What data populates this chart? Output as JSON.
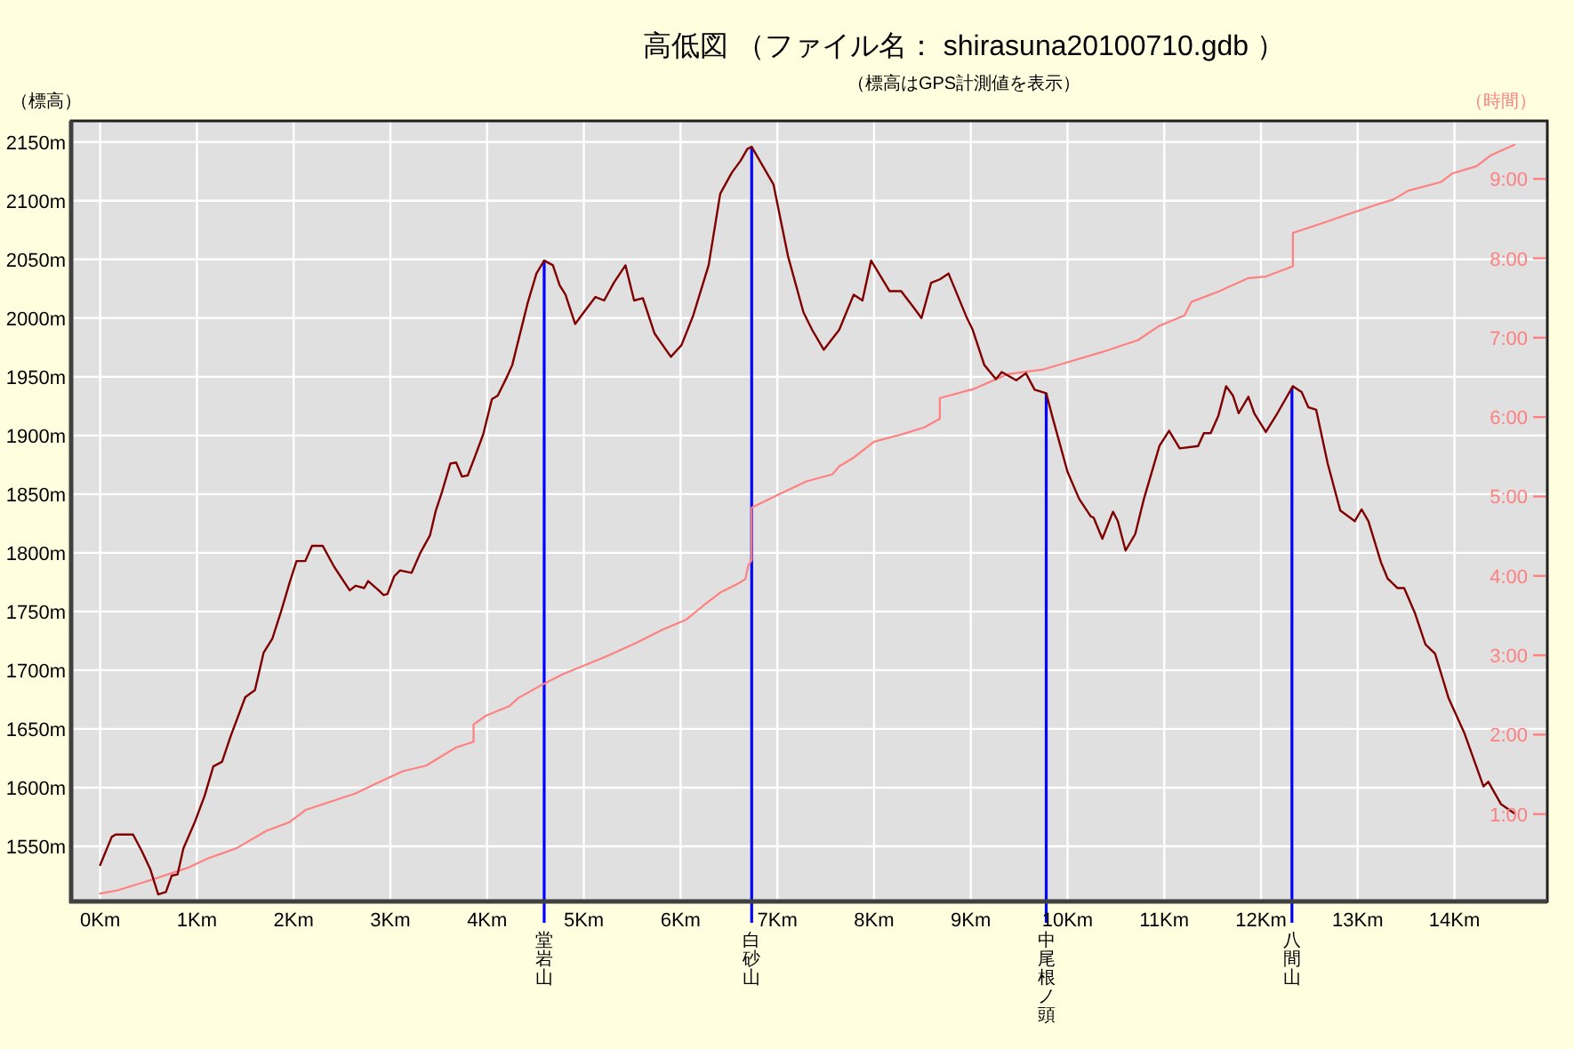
{
  "chart_data": {
    "type": "line",
    "title": "高低図 （ファイル名： shirasuna20100710.gdb ）",
    "subtitle": "（標高はGPS計測値を表示）",
    "ylabel": "（標高）",
    "y2label": "（時間）",
    "xlim": [
      -0.3,
      14.96
    ],
    "xticks": [
      {
        "value": 0,
        "label": "0Km"
      },
      {
        "value": 1,
        "label": "1Km"
      },
      {
        "value": 2,
        "label": "2Km"
      },
      {
        "value": 3,
        "label": "3Km"
      },
      {
        "value": 4,
        "label": "4Km"
      },
      {
        "value": 5,
        "label": "5Km"
      },
      {
        "value": 6,
        "label": "6Km"
      },
      {
        "value": 7,
        "label": "7Km"
      },
      {
        "value": 8,
        "label": "8Km"
      },
      {
        "value": 9,
        "label": "9Km"
      },
      {
        "value": 10,
        "label": "10Km"
      },
      {
        "value": 11,
        "label": "11Km"
      },
      {
        "value": 12,
        "label": "12Km"
      },
      {
        "value": 13,
        "label": "13Km"
      },
      {
        "value": 14,
        "label": "14Km"
      }
    ],
    "ylim": [
      1503,
      2168
    ],
    "yticks": [
      {
        "value": 1550,
        "label": "1550m"
      },
      {
        "value": 1600,
        "label": "1600m"
      },
      {
        "value": 1650,
        "label": "1650m"
      },
      {
        "value": 1700,
        "label": "1700m"
      },
      {
        "value": 1750,
        "label": "1750m"
      },
      {
        "value": 1800,
        "label": "1800m"
      },
      {
        "value": 1850,
        "label": "1850m"
      },
      {
        "value": 1900,
        "label": "1900m"
      },
      {
        "value": 1950,
        "label": "1950m"
      },
      {
        "value": 2000,
        "label": "2000m"
      },
      {
        "value": 2050,
        "label": "2050m"
      },
      {
        "value": 2100,
        "label": "2100m"
      },
      {
        "value": 2150,
        "label": "2150m"
      }
    ],
    "y2lim": [
      -0.1,
      9.73
    ],
    "y2ticks": [
      {
        "value": 1,
        "label": "1:00"
      },
      {
        "value": 2,
        "label": "2:00"
      },
      {
        "value": 3,
        "label": "3:00"
      },
      {
        "value": 4,
        "label": "4:00"
      },
      {
        "value": 5,
        "label": "5:00"
      },
      {
        "value": 6,
        "label": "6:00"
      },
      {
        "value": 7,
        "label": "7:00"
      },
      {
        "value": 8,
        "label": "8:00"
      },
      {
        "value": 9,
        "label": "9:00"
      }
    ],
    "grid": true,
    "series": [
      {
        "color": "#800000",
        "x": [
          0.0,
          0.12,
          0.16,
          0.34,
          0.43,
          0.52,
          0.6,
          0.68,
          0.74,
          0.8,
          0.86,
          0.98,
          1.08,
          1.17,
          1.26,
          1.35,
          1.5,
          1.6,
          1.69,
          1.78,
          1.87,
          1.96,
          2.03,
          2.12,
          2.19,
          2.3,
          2.42,
          2.58,
          2.64,
          2.73,
          2.77,
          2.88,
          2.93,
          2.97,
          3.04,
          3.1,
          3.22,
          3.31,
          3.41,
          3.47,
          3.53,
          3.62,
          3.68,
          3.74,
          3.8,
          3.87,
          3.96,
          4.05,
          4.11,
          4.2,
          4.26,
          4.42,
          4.51,
          4.59,
          4.68,
          4.75,
          4.81,
          4.91,
          5.0,
          5.12,
          5.21,
          5.31,
          5.43,
          5.52,
          5.61,
          5.73,
          5.9,
          6.01,
          6.13,
          6.29,
          6.41,
          6.53,
          6.62,
          6.69,
          6.735,
          6.84,
          6.96,
          7.11,
          7.27,
          7.36,
          7.48,
          7.64,
          7.79,
          7.88,
          7.97,
          8.16,
          8.28,
          8.4,
          8.49,
          8.59,
          8.68,
          8.77,
          8.95,
          9.02,
          9.14,
          9.26,
          9.32,
          9.47,
          9.57,
          9.66,
          9.78,
          9.84,
          10.0,
          10.12,
          10.24,
          10.27,
          10.36,
          10.47,
          10.52,
          10.6,
          10.7,
          10.79,
          10.95,
          11.05,
          11.16,
          11.35,
          11.41,
          11.48,
          11.56,
          11.64,
          11.71,
          11.77,
          11.87,
          11.93,
          12.05,
          12.17,
          12.33,
          12.42,
          12.49,
          12.57,
          12.69,
          12.82,
          12.97,
          13.04,
          13.11,
          13.24,
          13.31,
          13.41,
          13.48,
          13.59,
          13.7,
          13.8,
          13.94,
          14.1,
          14.3,
          14.35,
          14.48,
          14.62
        ],
        "values": [
          1534,
          1558,
          1560,
          1560,
          1546,
          1530,
          1509,
          1511,
          1525,
          1526,
          1548,
          1571,
          1593,
          1618,
          1622,
          1644,
          1677,
          1683,
          1715,
          1727,
          1750,
          1775,
          1793,
          1793,
          1806,
          1806,
          1788,
          1768,
          1772,
          1770,
          1776,
          1768,
          1764,
          1765,
          1780,
          1785,
          1783,
          1800,
          1815,
          1836,
          1851,
          1876,
          1877,
          1865,
          1866,
          1881,
          1901,
          1931,
          1934,
          1949,
          1960,
          2013,
          2038,
          2049,
          2045,
          2028,
          2020,
          1995,
          2005,
          2018,
          2015,
          2030,
          2045,
          2015,
          2017,
          1987,
          1967,
          1977,
          2002,
          2045,
          2106,
          2124,
          2134,
          2144,
          2146,
          2131,
          2114,
          2053,
          2005,
          1990,
          1973,
          1990,
          2020,
          2015,
          2049,
          2023,
          2023,
          2010,
          2000,
          2030,
          2033,
          2038,
          2002,
          1990,
          1960,
          1948,
          1954,
          1947,
          1953,
          1939,
          1936,
          1917,
          1869,
          1846,
          1831,
          1830,
          1812,
          1835,
          1827,
          1802,
          1816,
          1846,
          1891,
          1904,
          1889,
          1891,
          1902,
          1902,
          1917,
          1942,
          1934,
          1919,
          1933,
          1919,
          1903,
          1919,
          1942,
          1937,
          1924,
          1922,
          1876,
          1836,
          1827,
          1837,
          1827,
          1792,
          1778,
          1770,
          1770,
          1749,
          1722,
          1714,
          1676,
          1647,
          1601,
          1605,
          1586,
          1578
        ]
      },
      {
        "color": "#ff8080",
        "axis": "y2",
        "x": [
          0.0,
          0.18,
          0.55,
          0.92,
          1.11,
          1.41,
          1.72,
          1.96,
          2.12,
          2.39,
          2.64,
          2.88,
          3.13,
          3.37,
          3.68,
          3.86,
          3.86,
          3.99,
          4.23,
          4.32,
          4.57,
          4.78,
          5.24,
          5.53,
          5.81,
          6.06,
          6.23,
          6.41,
          6.59,
          6.67,
          6.7,
          6.735,
          6.735,
          6.99,
          7.3,
          7.57,
          7.64,
          7.79,
          8.0,
          8.28,
          8.52,
          8.68,
          8.68,
          9.02,
          9.38,
          9.75,
          10.0,
          10.36,
          10.73,
          10.95,
          11.21,
          11.28,
          11.56,
          11.87,
          12.05,
          12.33,
          12.33,
          12.63,
          12.82,
          13.18,
          13.37,
          13.52,
          13.86,
          13.98,
          14.23,
          14.38,
          14.62
        ],
        "values": [
          0.0,
          0.04,
          0.18,
          0.33,
          0.44,
          0.57,
          0.79,
          0.9,
          1.05,
          1.16,
          1.26,
          1.4,
          1.54,
          1.61,
          1.84,
          1.91,
          2.13,
          2.24,
          2.36,
          2.46,
          2.63,
          2.76,
          2.99,
          3.15,
          3.32,
          3.45,
          3.62,
          3.79,
          3.9,
          3.96,
          4.13,
          4.2,
          4.86,
          5.01,
          5.19,
          5.28,
          5.38,
          5.49,
          5.69,
          5.78,
          5.87,
          5.98,
          6.24,
          6.35,
          6.54,
          6.6,
          6.69,
          6.82,
          6.97,
          7.15,
          7.28,
          7.45,
          7.58,
          7.75,
          7.77,
          7.9,
          8.32,
          8.44,
          8.52,
          8.67,
          8.74,
          8.85,
          8.96,
          9.07,
          9.16,
          9.3,
          9.43
        ]
      }
    ],
    "ref_lines": [
      {
        "axis": "x",
        "value": 4.59,
        "label": "堂岩山",
        "color": "#0000ff"
      },
      {
        "axis": "x",
        "value": 6.735,
        "label": "白砂山",
        "color": "#0000ff"
      },
      {
        "axis": "x",
        "value": 9.78,
        "label": "中尾根ノ頭",
        "color": "#0000ff"
      },
      {
        "axis": "x",
        "value": 12.32,
        "label": "八間山",
        "color": "#0000ff"
      }
    ]
  }
}
